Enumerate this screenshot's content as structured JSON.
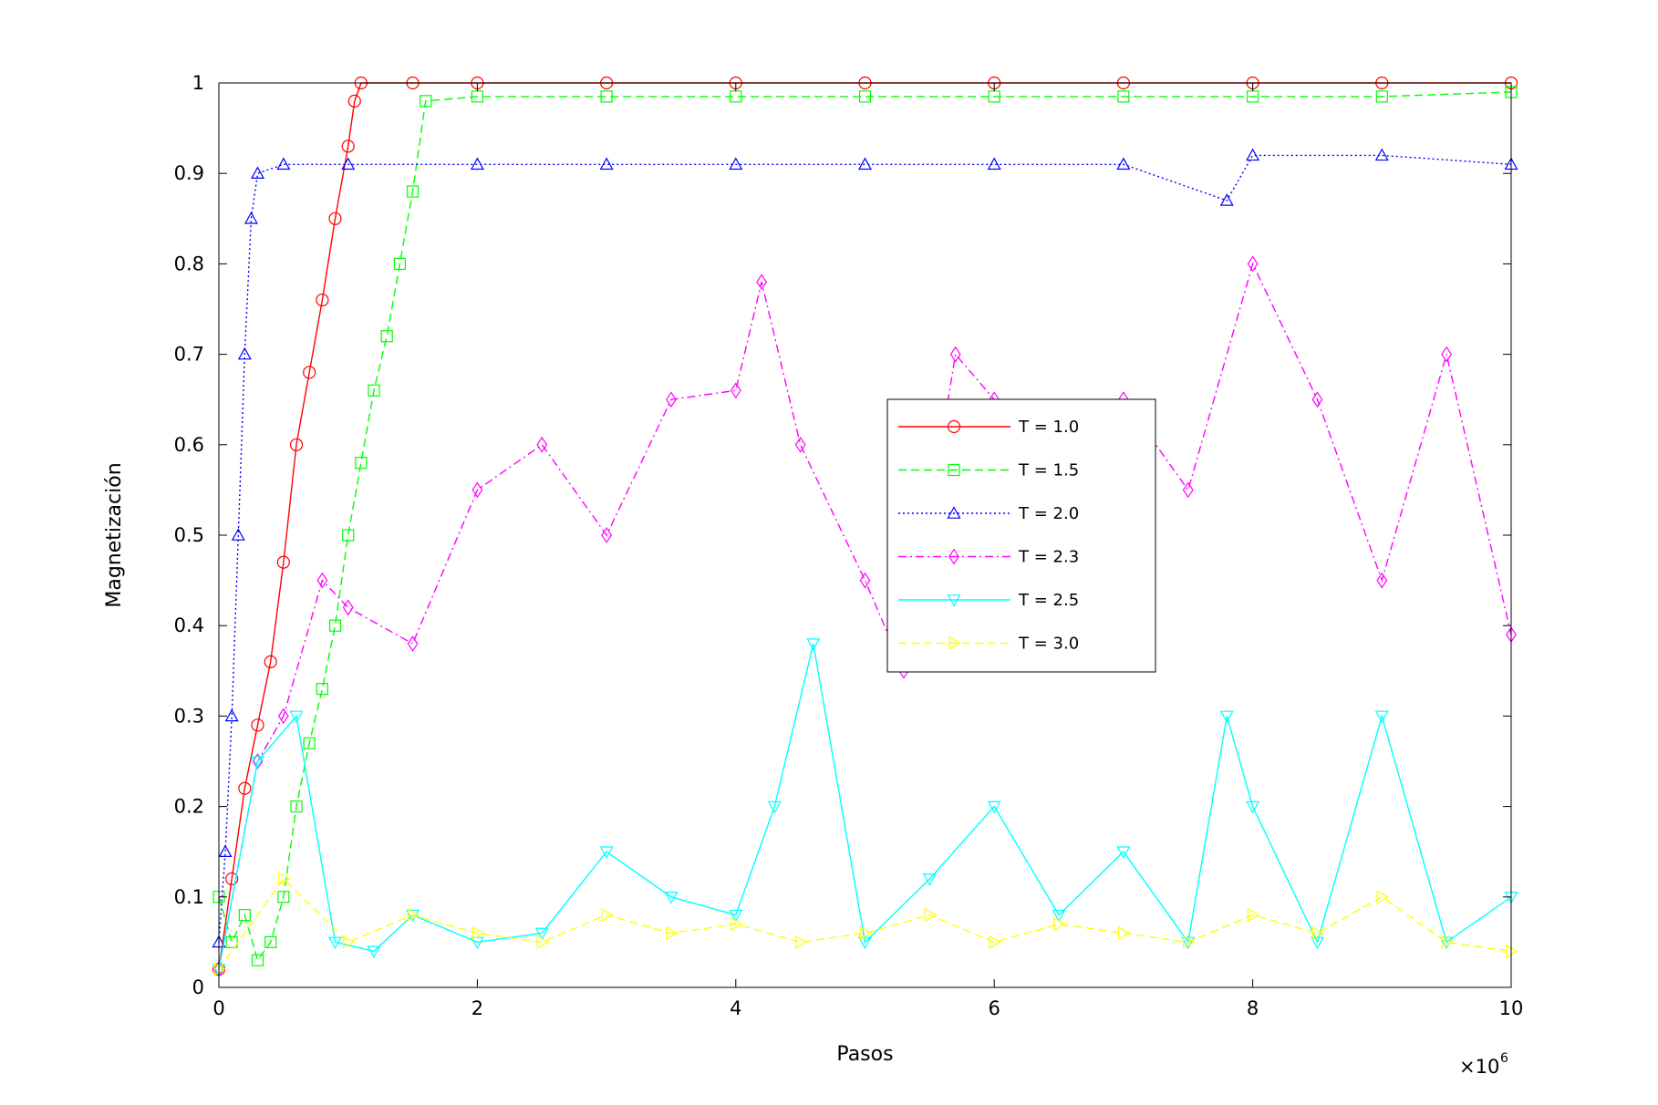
{
  "chart_data": {
    "type": "line",
    "title": "",
    "xlabel": "Pasos",
    "ylabel": "Magnetización",
    "x_multiplier": {
      "base": "×10",
      "exponent": "6"
    },
    "xlim": [
      0,
      10
    ],
    "ylim": [
      0,
      1
    ],
    "xticks": [
      0,
      2,
      4,
      6,
      8,
      10
    ],
    "xtick_labels": [
      "0",
      "2",
      "4",
      "6",
      "8",
      "10"
    ],
    "yticks": [
      0,
      0.1,
      0.2,
      0.3,
      0.4,
      0.5,
      0.6,
      0.7,
      0.8,
      0.9,
      1
    ],
    "ytick_labels": [
      "0",
      "0.1",
      "0.2",
      "0.3",
      "0.4",
      "0.5",
      "0.6",
      "0.7",
      "0.8",
      "0.9",
      "1"
    ],
    "grid": false,
    "legend_position": "center-right",
    "series": [
      {
        "name": "T = 1.0",
        "color": "#ff0000",
        "dash": "solid",
        "marker": "circle",
        "x": [
          0,
          0.1,
          0.2,
          0.3,
          0.4,
          0.5,
          0.6,
          0.7,
          0.8,
          0.9,
          1.0,
          1.05,
          1.1,
          1.5,
          2,
          3,
          4,
          5,
          6,
          7,
          8,
          9,
          10
        ],
        "y": [
          0.02,
          0.12,
          0.22,
          0.29,
          0.36,
          0.47,
          0.6,
          0.68,
          0.76,
          0.85,
          0.93,
          0.98,
          1.0,
          1.0,
          1.0,
          1.0,
          1.0,
          1.0,
          1.0,
          1.0,
          1.0,
          1.0,
          1.0
        ]
      },
      {
        "name": "T = 1.5",
        "color": "#00ff00",
        "dash": "dashed",
        "marker": "square",
        "x": [
          0,
          0.1,
          0.2,
          0.3,
          0.4,
          0.5,
          0.6,
          0.7,
          0.8,
          0.9,
          1.0,
          1.1,
          1.2,
          1.3,
          1.4,
          1.5,
          1.6,
          2,
          3,
          4,
          5,
          6,
          7,
          8,
          9,
          10
        ],
        "y": [
          0.1,
          0.05,
          0.08,
          0.03,
          0.05,
          0.1,
          0.2,
          0.27,
          0.33,
          0.4,
          0.5,
          0.58,
          0.66,
          0.72,
          0.8,
          0.88,
          0.98,
          0.985,
          0.985,
          0.985,
          0.985,
          0.985,
          0.985,
          0.985,
          0.985,
          0.99
        ]
      },
      {
        "name": "T = 2.0",
        "color": "#0000ff",
        "dash": "dotted",
        "marker": "triangle-up",
        "x": [
          0,
          0.05,
          0.1,
          0.15,
          0.2,
          0.25,
          0.3,
          0.5,
          1,
          2,
          3,
          4,
          5,
          6,
          7,
          7.8,
          8,
          9,
          10
        ],
        "y": [
          0.05,
          0.15,
          0.3,
          0.5,
          0.7,
          0.85,
          0.9,
          0.91,
          0.91,
          0.91,
          0.91,
          0.91,
          0.91,
          0.91,
          0.91,
          0.87,
          0.92,
          0.92,
          0.91
        ]
      },
      {
        "name": "T = 2.3",
        "color": "#ff00ff",
        "dash": "dashdot",
        "marker": "diamond",
        "x": [
          0,
          0.3,
          0.5,
          0.8,
          1.0,
          1.5,
          2.0,
          2.5,
          3.0,
          3.5,
          4.0,
          4.2,
          4.5,
          5.0,
          5.3,
          5.7,
          6.0,
          6.5,
          7.0,
          7.5,
          8.0,
          8.5,
          9.0,
          9.5,
          10.0
        ],
        "y": [
          0.02,
          0.25,
          0.3,
          0.45,
          0.42,
          0.38,
          0.55,
          0.6,
          0.5,
          0.65,
          0.66,
          0.78,
          0.6,
          0.45,
          0.35,
          0.7,
          0.65,
          0.45,
          0.65,
          0.55,
          0.8,
          0.65,
          0.45,
          0.7,
          0.39
        ]
      },
      {
        "name": "T = 2.5",
        "color": "#00ffff",
        "dash": "solid",
        "marker": "triangle-down",
        "x": [
          0,
          0.3,
          0.6,
          0.9,
          1.2,
          1.5,
          2.0,
          2.5,
          3.0,
          3.5,
          4.0,
          4.3,
          4.6,
          5.0,
          5.5,
          6.0,
          6.5,
          7.0,
          7.5,
          7.8,
          8.0,
          8.5,
          9.0,
          9.5,
          10.0
        ],
        "y": [
          0.02,
          0.25,
          0.3,
          0.05,
          0.04,
          0.08,
          0.05,
          0.06,
          0.15,
          0.1,
          0.08,
          0.2,
          0.38,
          0.05,
          0.12,
          0.2,
          0.08,
          0.15,
          0.05,
          0.3,
          0.2,
          0.05,
          0.3,
          0.05,
          0.1
        ]
      },
      {
        "name": "T = 3.0",
        "color": "#ffff00",
        "dash": "dashed",
        "marker": "triangle-right",
        "x": [
          0,
          0.5,
          1,
          1.5,
          2,
          2.5,
          3,
          3.5,
          4,
          4.5,
          5,
          5.5,
          6,
          6.5,
          7,
          7.5,
          8,
          8.5,
          9,
          9.5,
          10
        ],
        "y": [
          0.02,
          0.12,
          0.05,
          0.08,
          0.06,
          0.05,
          0.08,
          0.06,
          0.07,
          0.05,
          0.06,
          0.08,
          0.05,
          0.07,
          0.06,
          0.05,
          0.08,
          0.06,
          0.1,
          0.05,
          0.04
        ]
      }
    ]
  }
}
